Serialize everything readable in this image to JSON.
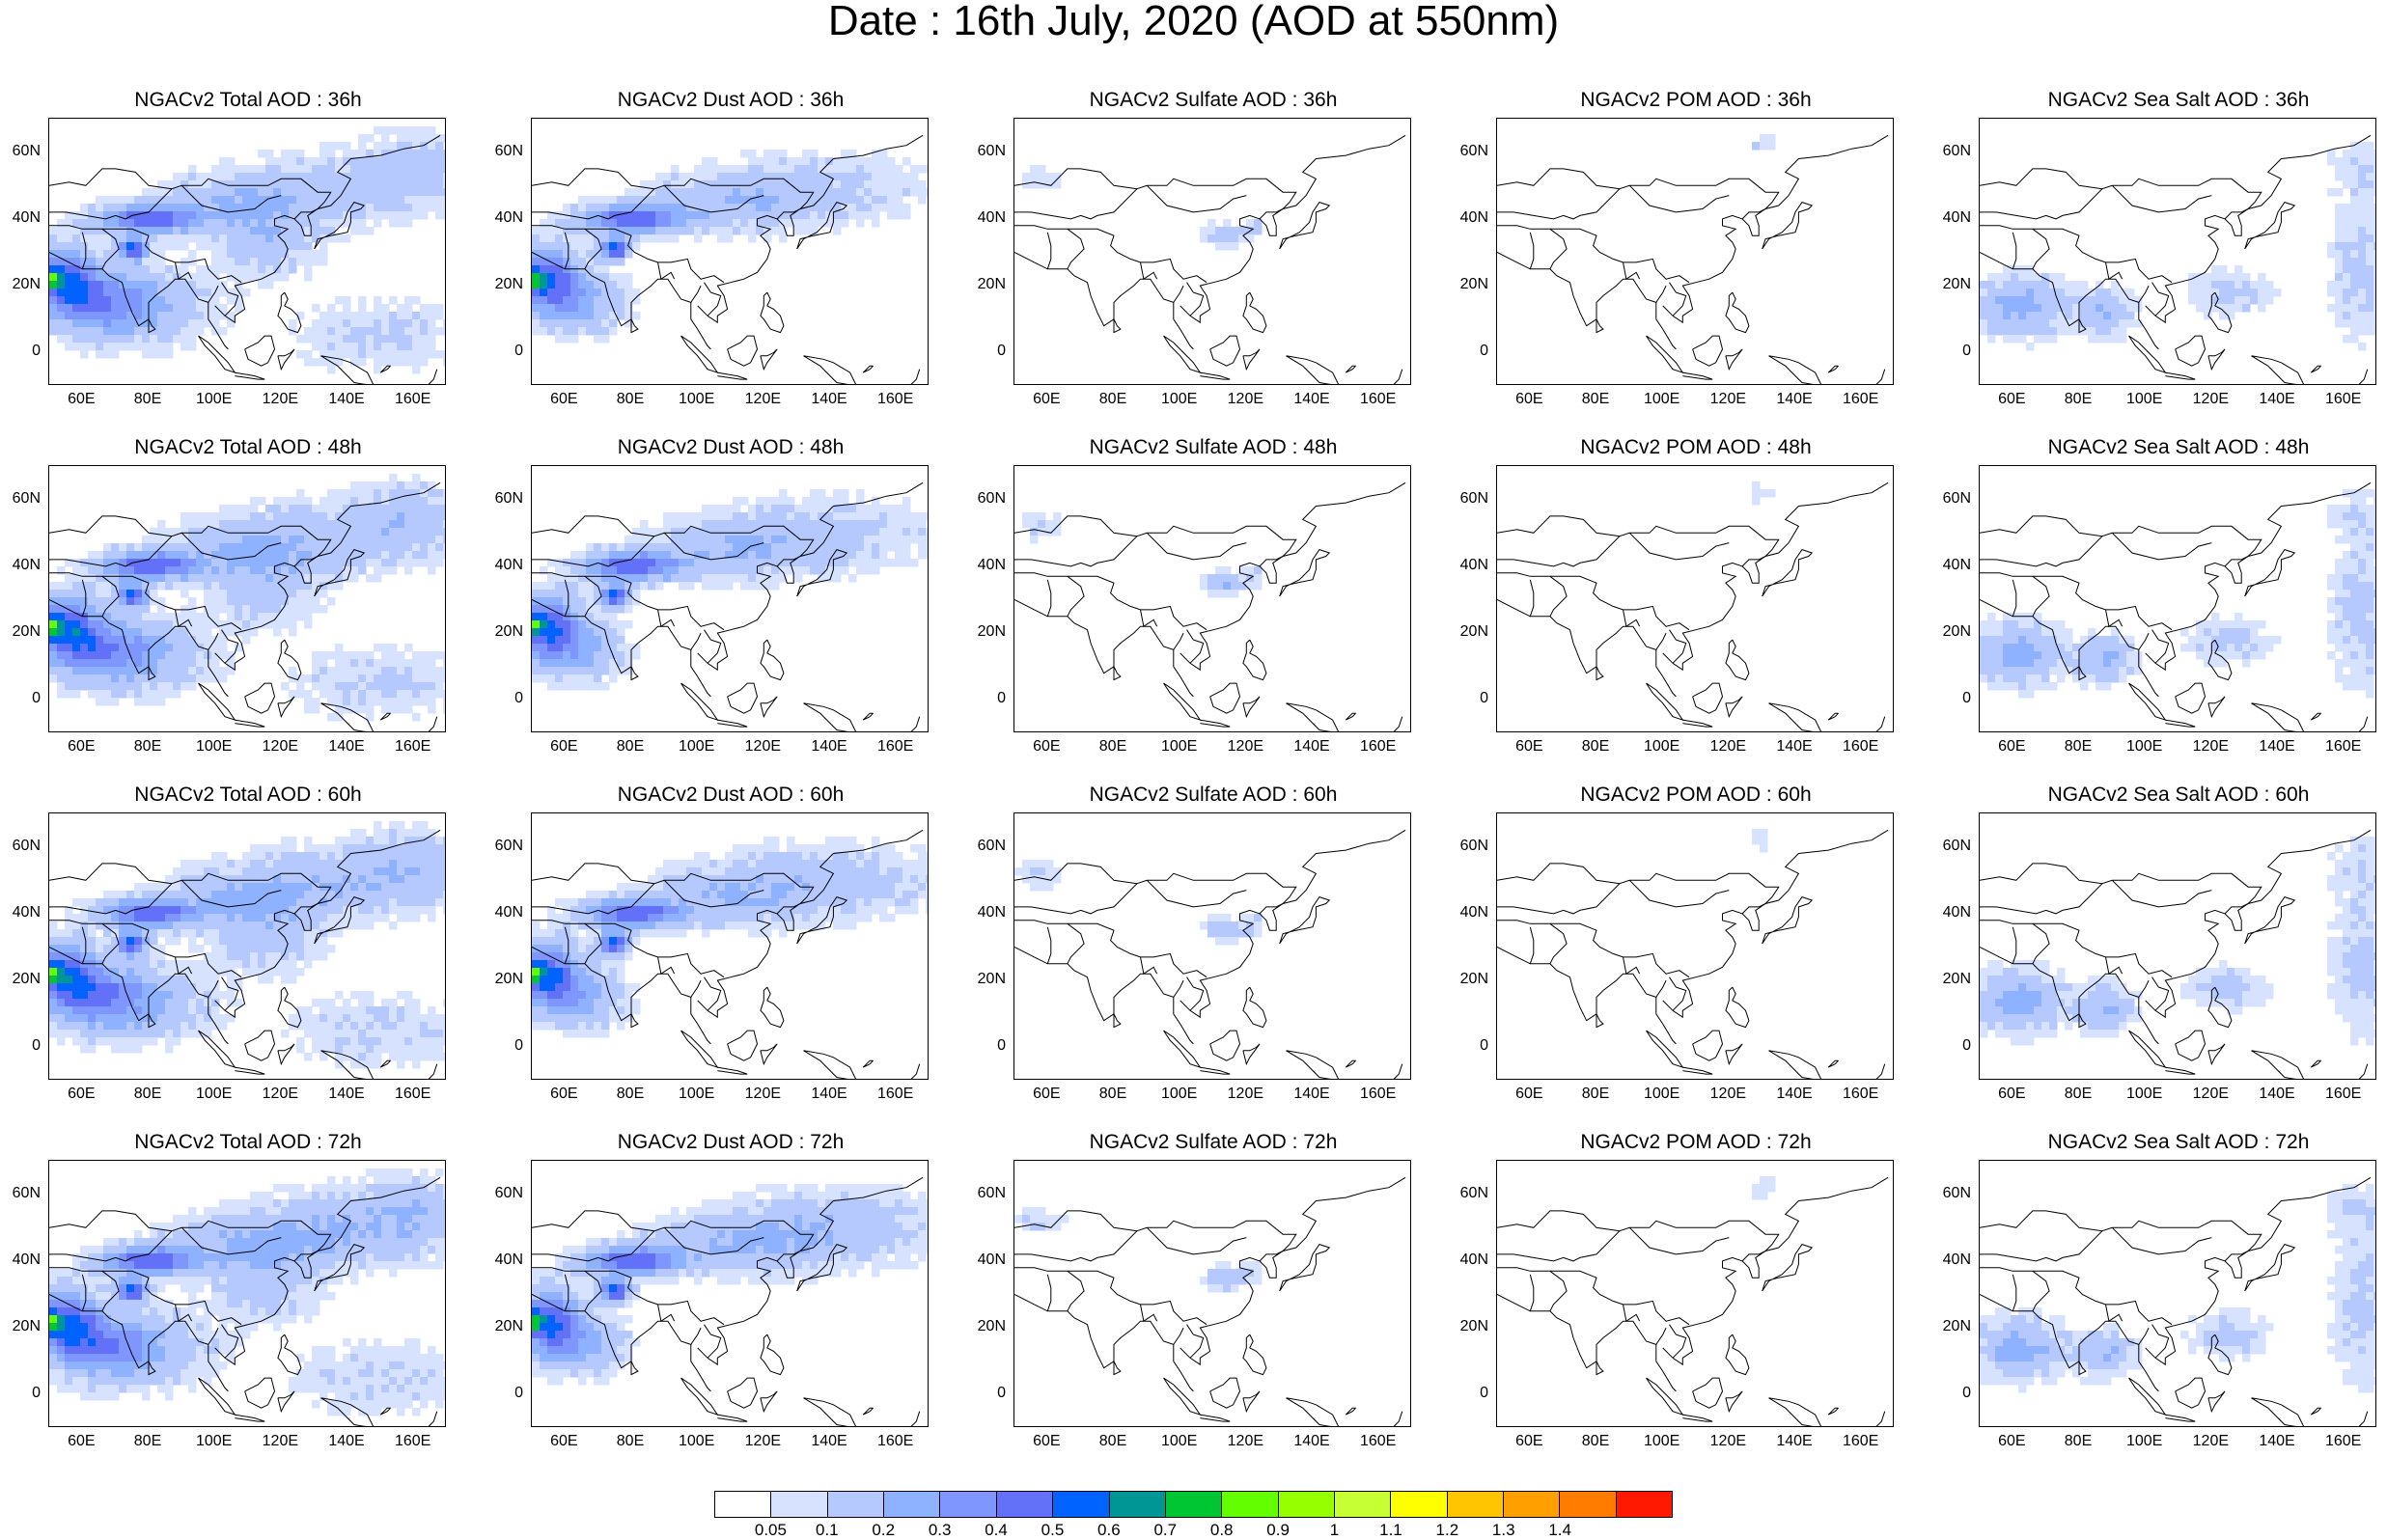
{
  "title": "Date : 16th July, 2020 (AOD at 550nm)",
  "panels": [
    [
      "NGACv2 Total AOD : 36h",
      "NGACv2 Dust AOD : 36h",
      "NGACv2 Sulfate AOD : 36h",
      "NGACv2 POM AOD : 36h",
      "NGACv2 Sea Salt AOD : 36h"
    ],
    [
      "NGACv2 Total AOD : 48h",
      "NGACv2 Dust AOD : 48h",
      "NGACv2 Sulfate AOD : 48h",
      "NGACv2 POM AOD : 48h",
      "NGACv2 Sea Salt AOD : 48h"
    ],
    [
      "NGACv2 Total AOD : 60h",
      "NGACv2 Dust AOD : 60h",
      "NGACv2 Sulfate AOD : 60h",
      "NGACv2 POM AOD : 60h",
      "NGACv2 Sea Salt AOD : 60h"
    ],
    [
      "NGACv2 Total AOD : 72h",
      "NGACv2 Dust AOD : 72h",
      "NGACv2 Sulfate AOD : 72h",
      "NGACv2 POM AOD : 72h",
      "NGACv2 Sea Salt  AOD : 72h"
    ]
  ],
  "y_ticks": [
    "60N",
    "40N",
    "20N",
    "0"
  ],
  "x_ticks": [
    "60E",
    "80E",
    "100E",
    "120E",
    "140E",
    "160E"
  ],
  "colorbar": {
    "labels": [
      "0.05",
      "0.1",
      "0.2",
      "0.3",
      "0.4",
      "0.5",
      "0.6",
      "0.7",
      "0.8",
      "0.9",
      "1",
      "1.1",
      "1.2",
      "1.3",
      "1.4"
    ],
    "colors": [
      "#ffffff",
      "#d6e2ff",
      "#b5c9ff",
      "#8eb2ff",
      "#7f96ff",
      "#6370f8",
      "#0063ff",
      "#009696",
      "#00c633",
      "#63ff00",
      "#96ff00",
      "#c6ff33",
      "#ffff00",
      "#ffc600",
      "#ffa000",
      "#ff7c00",
      "#ff1900"
    ]
  }
}
